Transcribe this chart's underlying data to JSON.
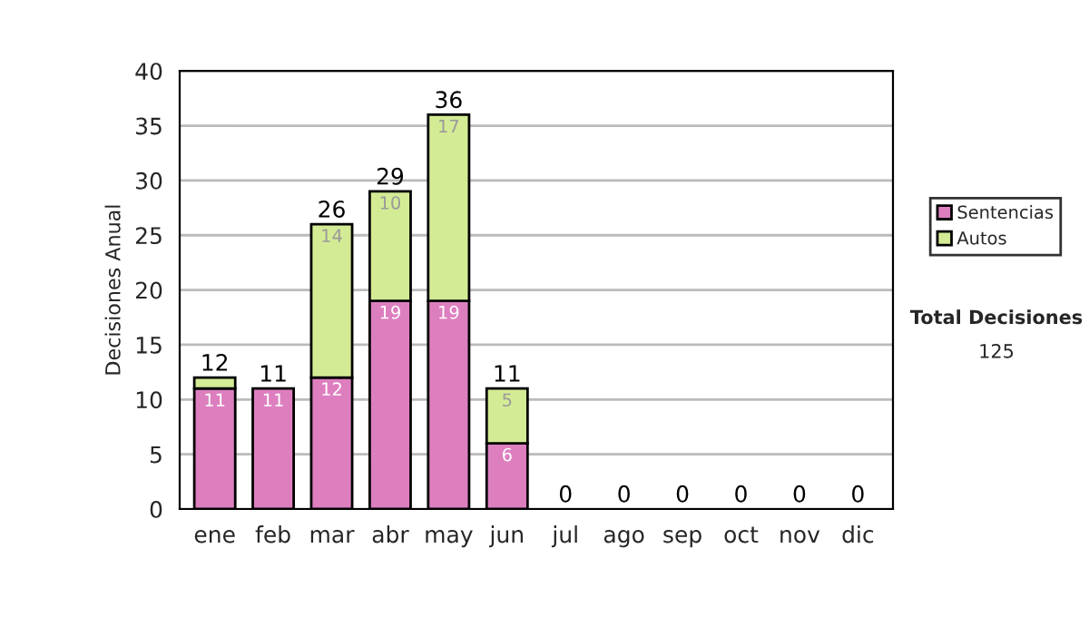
{
  "chart_data": {
    "type": "bar",
    "stacked": true,
    "ylabel": "Decisiones Anual",
    "categories": [
      "ene",
      "feb",
      "mar",
      "abr",
      "may",
      "jun",
      "jul",
      "ago",
      "sep",
      "oct",
      "nov",
      "dic"
    ],
    "series": [
      {
        "name": "Sentencias",
        "color": "#dd7fbf",
        "values": [
          11,
          11,
          12,
          19,
          19,
          6,
          0,
          0,
          0,
          0,
          0,
          0
        ],
        "value_labels": [
          "11",
          "11",
          "12",
          "19",
          "19",
          "6",
          null,
          null,
          null,
          null,
          null,
          null
        ]
      },
      {
        "name": "Autos",
        "color": "#d4eb95",
        "values": [
          1,
          0,
          14,
          10,
          17,
          5,
          0,
          0,
          0,
          0,
          0,
          0
        ],
        "value_labels": [
          null,
          null,
          "14",
          "10",
          "17",
          "5",
          null,
          null,
          null,
          null,
          null,
          null
        ]
      }
    ],
    "totals": [
      "12",
      "11",
      "26",
      "29",
      "36",
      "11",
      "0",
      "0",
      "0",
      "0",
      "0",
      "0"
    ],
    "ylim": [
      0,
      40
    ],
    "yticks": [
      0,
      5,
      10,
      15,
      20,
      25,
      30,
      35,
      40
    ],
    "grid": "y",
    "legend": "right",
    "annotations": [
      "Total Decisiones",
      "125"
    ]
  }
}
